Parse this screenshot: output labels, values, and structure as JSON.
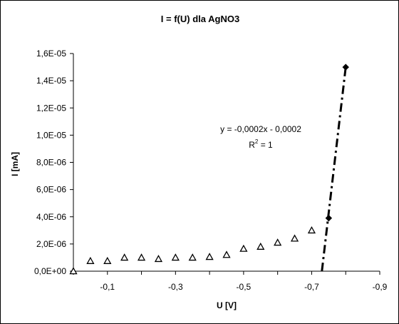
{
  "chart_data": {
    "type": "scatter",
    "title": "I = f(U) dla AgNO3",
    "xlabel": "U [V]",
    "ylabel": "I [mA]",
    "xlim": [
      0,
      -0.9
    ],
    "ylim": [
      0,
      1.6e-05
    ],
    "x_ticks": [
      {
        "value": -0.1,
        "label": "-0,1"
      },
      {
        "value": -0.3,
        "label": "-0,3"
      },
      {
        "value": -0.5,
        "label": "-0,5"
      },
      {
        "value": -0.7,
        "label": "-0,7"
      },
      {
        "value": -0.9,
        "label": "-0,9"
      }
    ],
    "y_ticks": [
      {
        "value": 0,
        "label": "0,0E+00"
      },
      {
        "value": 2e-06,
        "label": "2,0E-06"
      },
      {
        "value": 4e-06,
        "label": "4,0E-06"
      },
      {
        "value": 6e-06,
        "label": "6,0E-06"
      },
      {
        "value": 8e-06,
        "label": "8,0E-06"
      },
      {
        "value": 1e-05,
        "label": "1,0E-05"
      },
      {
        "value": 1.2e-05,
        "label": "1,2E-05"
      },
      {
        "value": 1.4e-05,
        "label": "1,4E-05"
      },
      {
        "value": 1.6e-05,
        "label": "1,6E-05"
      }
    ],
    "grid": false,
    "legend": "none",
    "series": [
      {
        "marker": "triangle-open",
        "x": [
          0,
          -0.05,
          -0.1,
          -0.15,
          -0.2,
          -0.25,
          -0.3,
          -0.35,
          -0.4,
          -0.45,
          -0.5,
          -0.55,
          -0.6,
          -0.65,
          -0.7
        ],
        "y": [
          0,
          7.5e-07,
          7.5e-07,
          1e-06,
          1e-06,
          9e-07,
          1e-06,
          1e-06,
          1.05e-06,
          1.2e-06,
          1.65e-06,
          1.8e-06,
          2.1e-06,
          2.4e-06,
          3e-06
        ]
      },
      {
        "marker": "diamond-filled",
        "x": [
          -0.75,
          -0.8
        ],
        "y": [
          3.9e-06,
          1.5e-05
        ]
      }
    ],
    "trendline": {
      "style": "dash-dot",
      "x": [
        -0.73,
        -0.8
      ],
      "y": [
        0,
        1.5e-05
      ],
      "equation": "y = -0,0002x - 0,0002",
      "r2_main": "R",
      "r2_sup": "2",
      "r2_rest": " = 1"
    },
    "colors": {
      "axis": "#000000",
      "marker": "#000000",
      "background": "#ffffff"
    }
  }
}
